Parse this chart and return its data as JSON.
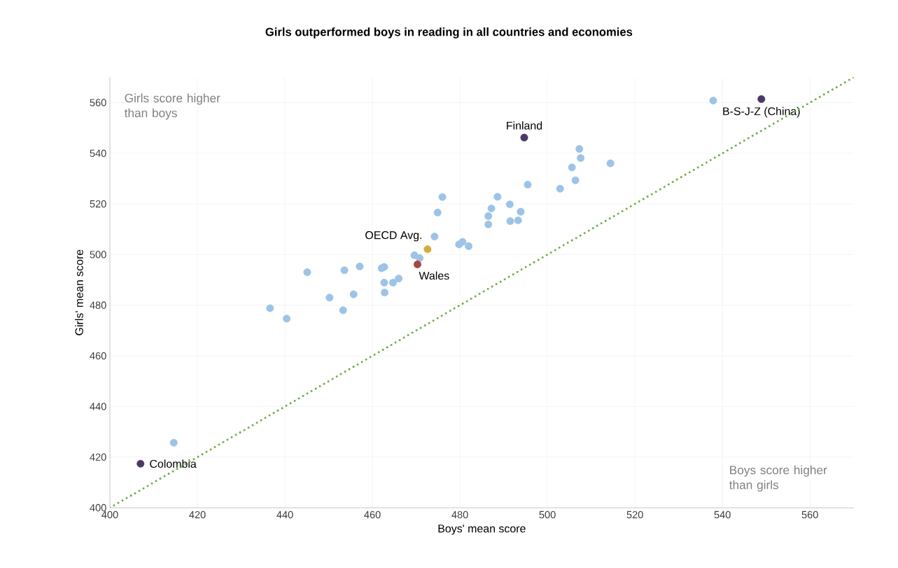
{
  "chart_data": {
    "type": "scatter",
    "title": "Girls outperformed boys in reading in all countries and economies",
    "xlabel": "Boys' mean score",
    "ylabel": "Girls' mean score",
    "xlim": [
      400,
      570
    ],
    "ylim": [
      400,
      570
    ],
    "xticks": [
      400,
      420,
      440,
      460,
      480,
      500,
      520,
      540,
      560
    ],
    "yticks": [
      400,
      420,
      440,
      460,
      480,
      500,
      520,
      540,
      560
    ],
    "grid": true,
    "legend": false,
    "annotations": [
      "Girls score higher than boys",
      "Boys score higher than girls"
    ],
    "series": [
      {
        "color": "#9dc3e6",
        "marker": "circle",
        "x": [
          414.6,
          436.6,
          440.4,
          445.1,
          450.2,
          453.3,
          453.6,
          455.7,
          457.1,
          462.1,
          462.7,
          462.7,
          462.8,
          464.7,
          466.0,
          469.6,
          470.8,
          474.2,
          474.9,
          476.0,
          479.8,
          480.6,
          482.0,
          486.5,
          486.5,
          487.2,
          488.6,
          491.4,
          491.5,
          493.3,
          493.9,
          495.5,
          502.9,
          505.6,
          506.4,
          507.3,
          507.6,
          514.4,
          537.9
        ],
        "values": [
          425.7,
          478.8,
          474.7,
          493.0,
          483.0,
          478.0,
          493.8,
          484.3,
          495.3,
          494.6,
          495.1,
          488.9,
          485.0,
          488.9,
          490.5,
          499.7,
          498.6,
          507.1,
          516.6,
          522.7,
          504.0,
          505.0,
          503.3,
          515.2,
          511.9,
          518.2,
          522.8,
          519.8,
          513.2,
          513.5,
          516.9,
          527.6,
          526.0,
          534.4,
          529.3,
          541.7,
          538.1,
          536.0,
          560.8
        ]
      },
      {
        "name": "Finland",
        "color": "#4b3868",
        "marker": "circle",
        "x": [
          494.7
        ],
        "values": [
          546.2
        ]
      },
      {
        "name": "B-S-J-Z (China)",
        "color": "#4b3868",
        "marker": "circle",
        "x": [
          548.9
        ],
        "values": [
          561.4
        ]
      },
      {
        "name": "Colombia",
        "color": "#4b3868",
        "marker": "circle",
        "x": [
          407.0
        ],
        "values": [
          417.4
        ]
      },
      {
        "name": "OECD Avg.",
        "color": "#d4ac3c",
        "marker": "circle",
        "x": [
          472.6
        ],
        "values": [
          502.1
        ]
      },
      {
        "name": "Wales",
        "color": "#a94444",
        "marker": "circle",
        "x": [
          470.3
        ],
        "values": [
          496.1
        ]
      },
      {
        "type": "line",
        "color": "#70ad47",
        "line_style": "dotted",
        "marker": "none",
        "x": [
          400,
          570
        ],
        "values": [
          400,
          570
        ]
      }
    ]
  }
}
